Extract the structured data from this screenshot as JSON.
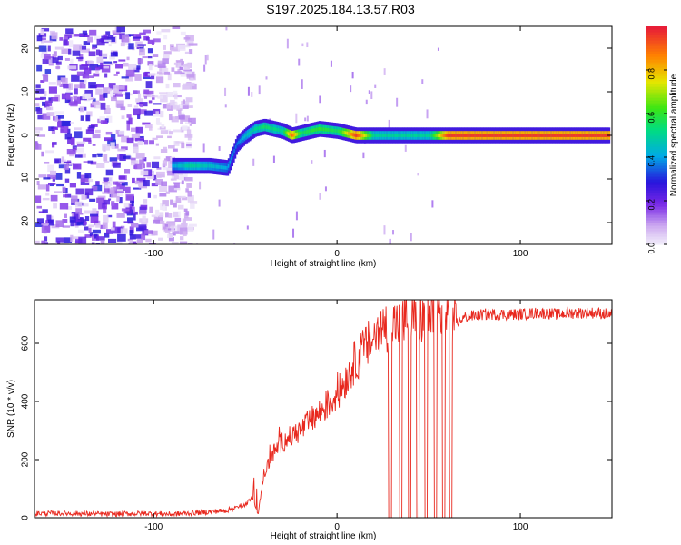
{
  "title": "S197.2025.184.13.57.R03",
  "chart_data": [
    {
      "type": "heatmap",
      "xlabel": "Height of straight line (km)",
      "ylabel": "Frequency (Hz)",
      "xlim": [
        -165,
        150
      ],
      "ylim": [
        -25,
        25
      ],
      "xticks": [
        -100,
        0,
        100
      ],
      "yticks": [
        -20,
        -10,
        0,
        10,
        20
      ],
      "colorbar": {
        "label": "Normalized spectral amplitude",
        "ticks": [
          0.0,
          0.2,
          0.4,
          0.6,
          0.8
        ],
        "range": [
          0,
          1
        ]
      },
      "ridge": {
        "description_points_x": [
          -90,
          -80,
          -70,
          -60,
          -55,
          -50,
          -45,
          -40,
          -30,
          -25,
          -20,
          -10,
          0,
          10,
          20,
          30,
          40,
          50,
          60,
          100,
          148
        ],
        "frequency_y": [
          -7,
          -7,
          -7,
          -7.5,
          -2,
          0,
          1.5,
          2,
          1,
          0,
          0.5,
          1.5,
          1,
          0,
          0,
          0,
          0,
          0,
          0,
          0,
          0
        ],
        "amplitude": [
          0.4,
          0.5,
          0.45,
          0.4,
          0.35,
          0.45,
          0.5,
          0.55,
          0.5,
          0.9,
          0.55,
          0.6,
          0.55,
          0.95,
          0.5,
          0.5,
          0.5,
          0.5,
          0.95,
          0.95,
          0.95
        ]
      }
    },
    {
      "type": "line",
      "xlabel": "Height of straight line (km)",
      "ylabel": "SNR (10 * v/v)",
      "xlim": [
        -165,
        150
      ],
      "ylim": [
        0,
        750
      ],
      "xticks": [
        -100,
        0,
        100
      ],
      "yticks": [
        0,
        200,
        400,
        600
      ],
      "series": [
        {
          "color": "#e8281e",
          "x": [
            -165,
            -145,
            -125,
            -105,
            -90,
            -75,
            -60,
            -50,
            -46,
            -43,
            -40,
            -35,
            -30,
            -25,
            -20,
            -15,
            -10,
            -5,
            0,
            5,
            10,
            15,
            20,
            25,
            28,
            30,
            40,
            50,
            60,
            63,
            65,
            70,
            80,
            90,
            100,
            110,
            120,
            130,
            140,
            150
          ],
          "y": [
            15,
            15,
            12,
            15,
            12,
            18,
            25,
            45,
            70,
            10,
            150,
            220,
            260,
            280,
            300,
            330,
            360,
            390,
            420,
            480,
            540,
            580,
            620,
            650,
            660,
            665,
            680,
            690,
            700,
            700,
            670,
            690,
            700,
            700,
            700,
            705,
            700,
            705,
            705,
            700
          ],
          "dropouts": [
            [
              28,
              30
            ],
            [
              34,
              35.5
            ],
            [
              39,
              40.5
            ],
            [
              43.5,
              45
            ],
            [
              48,
              49.5
            ],
            [
              53,
              54.5
            ],
            [
              57.5,
              59
            ],
            [
              61.5,
              63
            ]
          ]
        }
      ]
    }
  ]
}
